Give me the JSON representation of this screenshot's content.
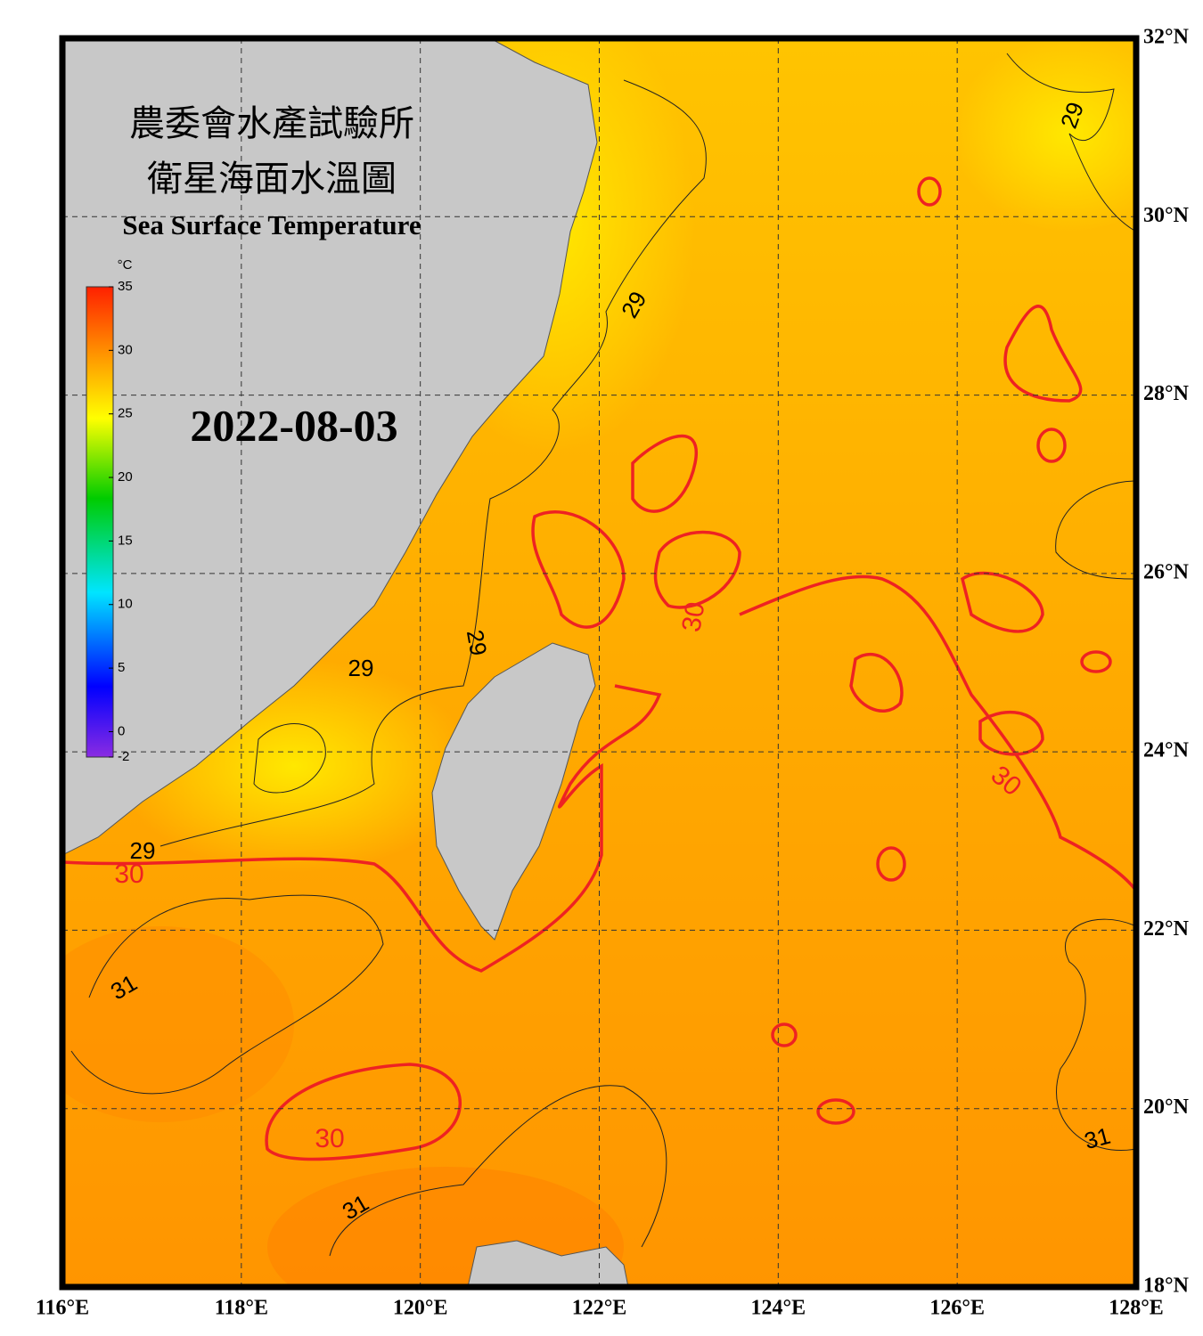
{
  "title_zh_1": "農委會水產試驗所",
  "title_zh_2": "衛星海面水溫圖",
  "title_en": "Sea Surface Temperature",
  "date": "2022-08-03",
  "colorbar": {
    "unit": "°C",
    "range": [
      -2,
      35
    ],
    "ticks": [
      35,
      30,
      25,
      20,
      15,
      10,
      5,
      0,
      -2
    ]
  },
  "map": {
    "lon_range": [
      116,
      128
    ],
    "lat_range": [
      18,
      32
    ],
    "lon_ticks": [
      {
        "value": 116,
        "label": "116°E"
      },
      {
        "value": 118,
        "label": "118°E"
      },
      {
        "value": 120,
        "label": "120°E"
      },
      {
        "value": 122,
        "label": "122°E"
      },
      {
        "value": 124,
        "label": "124°E"
      },
      {
        "value": 126,
        "label": "126°E"
      },
      {
        "value": 128,
        "label": "128°E"
      }
    ],
    "lat_ticks": [
      {
        "value": 18,
        "label": "18°N"
      },
      {
        "value": 20,
        "label": "20°N"
      },
      {
        "value": 22,
        "label": "22°N"
      },
      {
        "value": 24,
        "label": "24°N"
      },
      {
        "value": 26,
        "label": "26°N"
      },
      {
        "value": 28,
        "label": "28°N"
      },
      {
        "value": 30,
        "label": "30°N"
      },
      {
        "value": 32,
        "label": "32°N"
      }
    ]
  },
  "contour_labels": [
    29,
    29,
    29,
    29,
    29,
    30,
    30,
    30,
    30,
    31,
    31,
    31
  ]
}
